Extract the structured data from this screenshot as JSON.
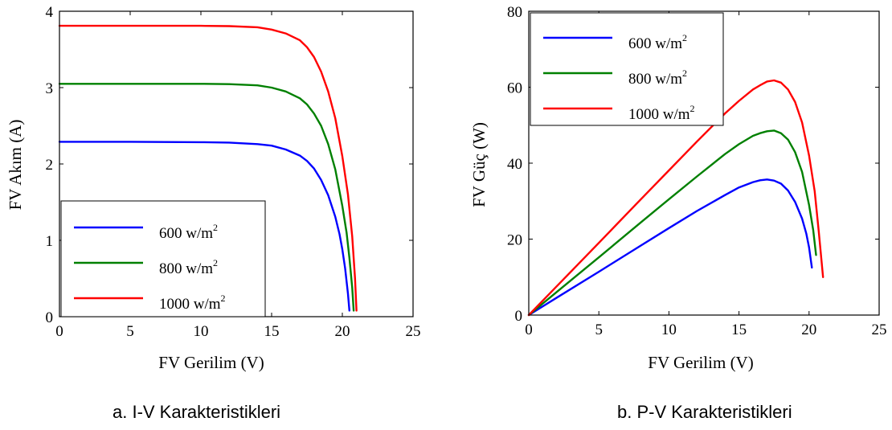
{
  "chart_data": [
    {
      "type": "line",
      "caption": "a.   I-V Karakteristikleri",
      "xlabel": "FV Gerilim (V)",
      "ylabel": "FV Akım (A)",
      "xlim": [
        0,
        25
      ],
      "ylim": [
        0,
        4
      ],
      "xticks": [
        0,
        5,
        10,
        15,
        20,
        25
      ],
      "yticks": [
        0,
        1,
        2,
        3,
        4
      ],
      "grid": false,
      "legend_position": "bottom-left",
      "series": [
        {
          "name": "600 w/m",
          "sup": "2",
          "color": "#0000ff",
          "x": [
            0,
            5,
            10,
            12,
            14,
            15,
            16,
            17,
            17.5,
            18,
            18.5,
            19,
            19.5,
            19.8,
            20.0,
            20.2,
            20.4,
            20.5
          ],
          "y": [
            2.29,
            2.29,
            2.285,
            2.28,
            2.26,
            2.24,
            2.19,
            2.11,
            2.04,
            1.94,
            1.79,
            1.59,
            1.31,
            1.08,
            0.88,
            0.63,
            0.3,
            0.08
          ]
        },
        {
          "name": "800 w/m",
          "sup": "2",
          "color": "#008000",
          "x": [
            0,
            5,
            10,
            12,
            14,
            15,
            16,
            17,
            17.5,
            18,
            18.5,
            19,
            19.5,
            20,
            20.3,
            20.5,
            20.7,
            20.8
          ],
          "y": [
            3.05,
            3.05,
            3.05,
            3.045,
            3.03,
            3.0,
            2.95,
            2.86,
            2.78,
            2.66,
            2.5,
            2.26,
            1.93,
            1.45,
            1.1,
            0.77,
            0.38,
            0.08
          ]
        },
        {
          "name": "1000 w/m",
          "sup": "2",
          "color": "#ff0000",
          "x": [
            0,
            5,
            10,
            12,
            14,
            15,
            16,
            17,
            17.5,
            18,
            18.5,
            19,
            19.5,
            20,
            20.4,
            20.7,
            20.9,
            21.0
          ],
          "y": [
            3.81,
            3.81,
            3.81,
            3.805,
            3.79,
            3.76,
            3.71,
            3.62,
            3.53,
            3.4,
            3.21,
            2.95,
            2.6,
            2.1,
            1.6,
            1.05,
            0.5,
            0.08
          ]
        }
      ]
    },
    {
      "type": "line",
      "caption": "b.  P-V Karakteristikleri",
      "xlabel": "FV Gerilim (V)",
      "ylabel": "FV Güç (W)",
      "xlim": [
        0,
        25
      ],
      "ylim": [
        0,
        80
      ],
      "xticks": [
        0,
        5,
        10,
        15,
        20,
        25
      ],
      "yticks": [
        0,
        20,
        40,
        60,
        80
      ],
      "grid": false,
      "legend_position": "top-left",
      "series": [
        {
          "name": "600 w/m",
          "sup": "2",
          "color": "#0000ff",
          "x": [
            0,
            2,
            5,
            8,
            10,
            12,
            14,
            15,
            16,
            16.5,
            17,
            17.5,
            18,
            18.5,
            19,
            19.5,
            19.8,
            20.0,
            20.2
          ],
          "y": [
            0,
            4.6,
            11.4,
            18.3,
            22.9,
            27.4,
            31.6,
            33.6,
            35.0,
            35.5,
            35.7,
            35.4,
            34.6,
            32.8,
            29.8,
            25.4,
            21.5,
            17.8,
            12.5
          ]
        },
        {
          "name": "800 w/m",
          "sup": "2",
          "color": "#008000",
          "x": [
            0,
            2,
            5,
            8,
            10,
            12,
            14,
            15,
            16,
            16.5,
            17,
            17.5,
            18,
            18.5,
            19,
            19.5,
            20,
            20.3,
            20.5
          ],
          "y": [
            0,
            6.1,
            15.2,
            24.4,
            30.5,
            36.5,
            42.4,
            45.0,
            47.2,
            47.9,
            48.4,
            48.6,
            47.9,
            46.2,
            42.9,
            37.7,
            29.0,
            22.3,
            15.8
          ]
        },
        {
          "name": "1000 w/m",
          "sup": "2",
          "color": "#ff0000",
          "x": [
            0,
            2,
            5,
            8,
            10,
            12,
            14,
            15,
            16,
            16.5,
            17,
            17.5,
            18,
            18.5,
            19,
            19.5,
            20,
            20.4,
            20.7,
            21.0
          ],
          "y": [
            0,
            7.6,
            19.0,
            30.5,
            38.1,
            45.7,
            53.1,
            56.4,
            59.4,
            60.5,
            61.5,
            61.8,
            61.2,
            59.4,
            56.1,
            50.7,
            42.0,
            32.6,
            21.7,
            10.0
          ]
        }
      ]
    }
  ]
}
